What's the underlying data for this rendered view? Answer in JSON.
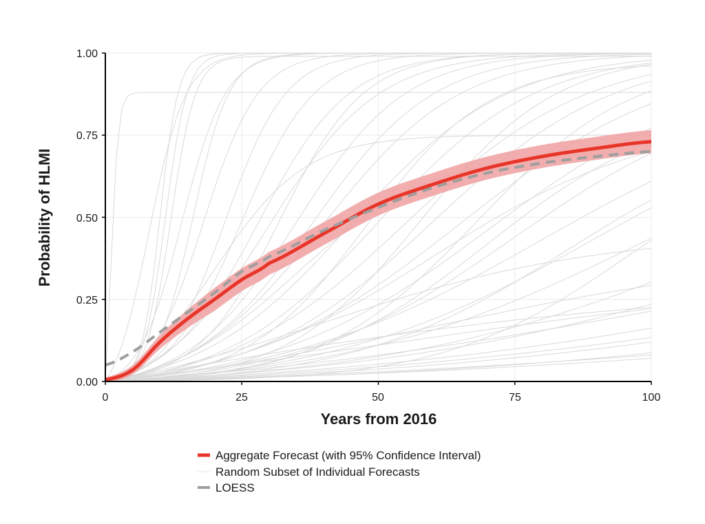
{
  "chart_data": {
    "type": "line",
    "title": "",
    "xlabel": "Years from 2016",
    "ylabel": "Probability of HLMI",
    "xlim": [
      0,
      100
    ],
    "ylim": [
      0,
      1
    ],
    "xticks": [
      "0",
      "25",
      "50",
      "75",
      "100"
    ],
    "yticks": [
      "0.00",
      "0.25",
      "0.50",
      "0.75",
      "1.00"
    ],
    "grid": true,
    "legend_position": "bottom",
    "colors": {
      "aggregate": "#e8352a",
      "ci_band": "#f0a0a0",
      "individual": "#d9d9d9",
      "loess": "#9e9e9e"
    },
    "series": [
      {
        "name": "Aggregate Forecast (with 95% Confidence Interval)",
        "style": "solid",
        "x": [
          0,
          5,
          10,
          15,
          20,
          25,
          30,
          40,
          50,
          60,
          70,
          80,
          90,
          100
        ],
        "y": [
          0.005,
          0.035,
          0.12,
          0.19,
          0.25,
          0.31,
          0.36,
          0.45,
          0.54,
          0.6,
          0.65,
          0.685,
          0.71,
          0.73
        ],
        "ci_halfwidth": 0.035
      },
      {
        "name": "Random Subset of Individual Forecasts",
        "style": "thin",
        "curves_sigmoid_midpoint_steepness_asymptote": [
          [
            10,
            0.6,
            1
          ],
          [
            11,
            0.5,
            1
          ],
          [
            12,
            0.45,
            0.99
          ],
          [
            8,
            0.3,
            1
          ],
          [
            14,
            0.25,
            1
          ],
          [
            18,
            0.2,
            1
          ],
          [
            22,
            0.18,
            1
          ],
          [
            25,
            0.15,
            1
          ],
          [
            28,
            0.12,
            1
          ],
          [
            30,
            0.1,
            1
          ],
          [
            35,
            0.1,
            1
          ],
          [
            38,
            0.09,
            1
          ],
          [
            40,
            0.08,
            1
          ],
          [
            45,
            0.07,
            1
          ],
          [
            50,
            0.07,
            1
          ],
          [
            55,
            0.06,
            1
          ],
          [
            60,
            0.06,
            1
          ],
          [
            65,
            0.05,
            1
          ],
          [
            70,
            0.05,
            0.95
          ],
          [
            75,
            0.05,
            0.9
          ],
          [
            80,
            0.04,
            0.9
          ],
          [
            90,
            0.04,
            0.9
          ],
          [
            100,
            0.035,
            0.9
          ],
          [
            1,
            1.5,
            0.88
          ],
          [
            20,
            0.12,
            0.75
          ],
          [
            35,
            0.08,
            0.7
          ],
          [
            60,
            0.05,
            0.8
          ],
          [
            70,
            0.06,
            0.85
          ],
          [
            85,
            0.05,
            0.82
          ],
          [
            120,
            0.03,
            0.9
          ],
          [
            130,
            0.025,
            0.8
          ],
          [
            150,
            0.02,
            0.7
          ],
          [
            160,
            0.02,
            0.6
          ],
          [
            180,
            0.02,
            0.6
          ],
          [
            200,
            0.015,
            0.5
          ],
          [
            40,
            0.04,
            0.45
          ],
          [
            60,
            0.03,
            0.4
          ],
          [
            110,
            0.02,
            0.55
          ],
          [
            140,
            0.02,
            0.5
          ],
          [
            170,
            0.015,
            0.4
          ],
          [
            95,
            0.06,
            0.75
          ],
          [
            48,
            0.09,
            0.97
          ],
          [
            32,
            0.13,
            1
          ],
          [
            16,
            0.3,
            1
          ],
          [
            58,
            0.08,
            1
          ],
          [
            68,
            0.07,
            0.98
          ],
          [
            5,
            0.02,
            0.3
          ],
          [
            50,
            0.02,
            0.35
          ]
        ]
      },
      {
        "name": "LOESS",
        "style": "dashed",
        "x": [
          0,
          5,
          10,
          15,
          20,
          25,
          30,
          40,
          50,
          60,
          70,
          80,
          90,
          100
        ],
        "y": [
          0.05,
          0.09,
          0.15,
          0.21,
          0.27,
          0.335,
          0.38,
          0.46,
          0.53,
          0.59,
          0.635,
          0.665,
          0.685,
          0.7
        ]
      }
    ]
  }
}
